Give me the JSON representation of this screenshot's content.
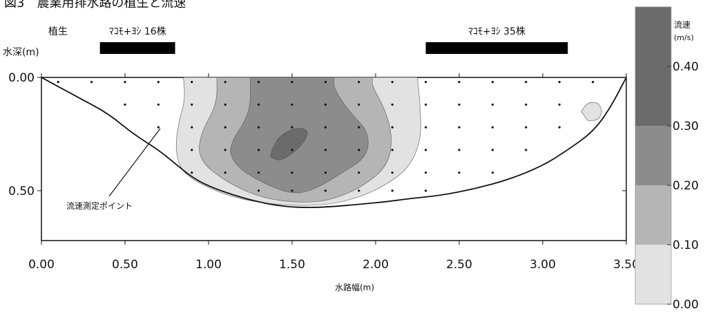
{
  "chart_data": {
    "type": "contour",
    "title_partial": "図3　農業用排水路の植生と流速",
    "xlabel": "水路幅(m)",
    "ylabel": "水深(m)",
    "xlim": [
      0,
      3.5
    ],
    "ylim": [
      0.0,
      0.72
    ],
    "x_ticks": [
      "0.00",
      "0.50",
      "1.00",
      "1.50",
      "2.00",
      "2.50",
      "3.00",
      "3.50"
    ],
    "y_ticks": [
      "0.00",
      "0.50"
    ],
    "vegetation_row_label": "植生",
    "vegetation": [
      {
        "label": "ﾏｺﾓ+ﾖｼ 16株",
        "x_start": 0.35,
        "x_end": 0.8
      },
      {
        "label": "ﾏｺﾓ+ﾖｼ 35株",
        "x_start": 2.3,
        "x_end": 3.15
      }
    ],
    "annotation": "流速測定ポイント",
    "legend": {
      "title": "流速",
      "unit": "(m/s)",
      "levels": [
        "0.40",
        "0.30",
        "0.20",
        "0.10",
        "0.00"
      ],
      "colors": [
        "#6b6b6b",
        "#8c8c8c",
        "#b5b5b5",
        "#e2e2e2",
        "#ffffff"
      ]
    },
    "bed_profile": [
      [
        0.0,
        0.0
      ],
      [
        0.1,
        0.04
      ],
      [
        0.25,
        0.1
      ],
      [
        0.4,
        0.16
      ],
      [
        0.55,
        0.25
      ],
      [
        0.7,
        0.32
      ],
      [
        0.8,
        0.38
      ],
      [
        0.9,
        0.44
      ],
      [
        1.0,
        0.48
      ],
      [
        1.15,
        0.52
      ],
      [
        1.3,
        0.55
      ],
      [
        1.45,
        0.57
      ],
      [
        1.6,
        0.575
      ],
      [
        1.75,
        0.57
      ],
      [
        1.9,
        0.56
      ],
      [
        2.05,
        0.55
      ],
      [
        2.2,
        0.535
      ],
      [
        2.4,
        0.52
      ],
      [
        2.6,
        0.49
      ],
      [
        2.8,
        0.45
      ],
      [
        3.0,
        0.39
      ],
      [
        3.15,
        0.32
      ],
      [
        3.3,
        0.24
      ],
      [
        3.4,
        0.14
      ],
      [
        3.5,
        0.0
      ]
    ],
    "contours": [
      {
        "level": "0.10-0.20",
        "color": "#e2e2e2",
        "points": [
          [
            0.85,
            0.0
          ],
          [
            0.86,
            0.1
          ],
          [
            0.82,
            0.2
          ],
          [
            0.8,
            0.32
          ],
          [
            0.84,
            0.42
          ],
          [
            1.0,
            0.49
          ],
          [
            1.2,
            0.54
          ],
          [
            1.45,
            0.565
          ],
          [
            1.7,
            0.565
          ],
          [
            1.9,
            0.53
          ],
          [
            2.05,
            0.48
          ],
          [
            2.2,
            0.4
          ],
          [
            2.27,
            0.28
          ],
          [
            2.27,
            0.15
          ],
          [
            2.25,
            0.0
          ]
        ]
      },
      {
        "level": "0.20-0.30",
        "color": "#b5b5b5",
        "points": [
          [
            1.05,
            0.0
          ],
          [
            1.05,
            0.12
          ],
          [
            0.95,
            0.25
          ],
          [
            0.94,
            0.36
          ],
          [
            1.08,
            0.45
          ],
          [
            1.3,
            0.53
          ],
          [
            1.55,
            0.555
          ],
          [
            1.75,
            0.54
          ],
          [
            1.95,
            0.47
          ],
          [
            2.08,
            0.38
          ],
          [
            2.1,
            0.25
          ],
          [
            2.05,
            0.13
          ],
          [
            1.98,
            0.04
          ],
          [
            1.98,
            0.0
          ]
        ]
      },
      {
        "level": "0.30-0.40",
        "color": "#8c8c8c",
        "points": [
          [
            1.25,
            0.0
          ],
          [
            1.25,
            0.16
          ],
          [
            1.12,
            0.3
          ],
          [
            1.15,
            0.38
          ],
          [
            1.28,
            0.45
          ],
          [
            1.5,
            0.52
          ],
          [
            1.65,
            0.49
          ],
          [
            1.8,
            0.42
          ],
          [
            1.95,
            0.35
          ],
          [
            1.96,
            0.24
          ],
          [
            1.84,
            0.15
          ],
          [
            1.75,
            0.05
          ],
          [
            1.75,
            0.0
          ]
        ]
      },
      {
        "level": ">=0.40",
        "color": "#6b6b6b",
        "points": [
          [
            1.38,
            0.32
          ],
          [
            1.42,
            0.26
          ],
          [
            1.52,
            0.22
          ],
          [
            1.6,
            0.23
          ],
          [
            1.58,
            0.28
          ],
          [
            1.5,
            0.34
          ],
          [
            1.42,
            0.37
          ],
          [
            1.37,
            0.35
          ]
        ]
      },
      {
        "level": "0.10-0.20",
        "color": "#e2e2e2",
        "points": [
          [
            3.23,
            0.15
          ],
          [
            3.27,
            0.11
          ],
          [
            3.33,
            0.11
          ],
          [
            3.36,
            0.15
          ],
          [
            3.33,
            0.19
          ],
          [
            3.27,
            0.19
          ]
        ]
      }
    ],
    "measurement_columns": [
      {
        "x": 0.1,
        "depths": [
          0.02
        ]
      },
      {
        "x": 0.3,
        "depths": [
          0.02
        ]
      },
      {
        "x": 0.5,
        "depths": [
          0.02,
          0.12
        ]
      },
      {
        "x": 0.7,
        "depths": [
          0.02,
          0.12,
          0.22
        ]
      },
      {
        "x": 0.9,
        "depths": [
          0.02,
          0.12,
          0.22,
          0.32,
          0.42
        ]
      },
      {
        "x": 1.1,
        "depths": [
          0.02,
          0.12,
          0.22,
          0.32,
          0.42
        ]
      },
      {
        "x": 1.3,
        "depths": [
          0.02,
          0.12,
          0.22,
          0.32,
          0.42,
          0.5
        ]
      },
      {
        "x": 1.5,
        "depths": [
          0.02,
          0.12,
          0.22,
          0.32,
          0.42,
          0.5
        ]
      },
      {
        "x": 1.7,
        "depths": [
          0.02,
          0.12,
          0.22,
          0.32,
          0.42,
          0.5
        ]
      },
      {
        "x": 1.9,
        "depths": [
          0.02,
          0.12,
          0.22,
          0.32,
          0.42,
          0.5
        ]
      },
      {
        "x": 2.1,
        "depths": [
          0.02,
          0.12,
          0.22,
          0.32,
          0.42,
          0.5
        ]
      },
      {
        "x": 2.3,
        "depths": [
          0.02,
          0.12,
          0.22,
          0.32,
          0.42,
          0.5
        ]
      },
      {
        "x": 2.5,
        "depths": [
          0.02,
          0.12,
          0.22,
          0.32,
          0.42
        ]
      },
      {
        "x": 2.7,
        "depths": [
          0.02,
          0.12,
          0.22,
          0.32,
          0.42
        ]
      },
      {
        "x": 2.9,
        "depths": [
          0.02,
          0.12,
          0.22,
          0.32
        ]
      },
      {
        "x": 3.1,
        "depths": [
          0.02,
          0.12,
          0.22
        ]
      },
      {
        "x": 3.3,
        "depths": [
          0.02
        ]
      }
    ]
  }
}
